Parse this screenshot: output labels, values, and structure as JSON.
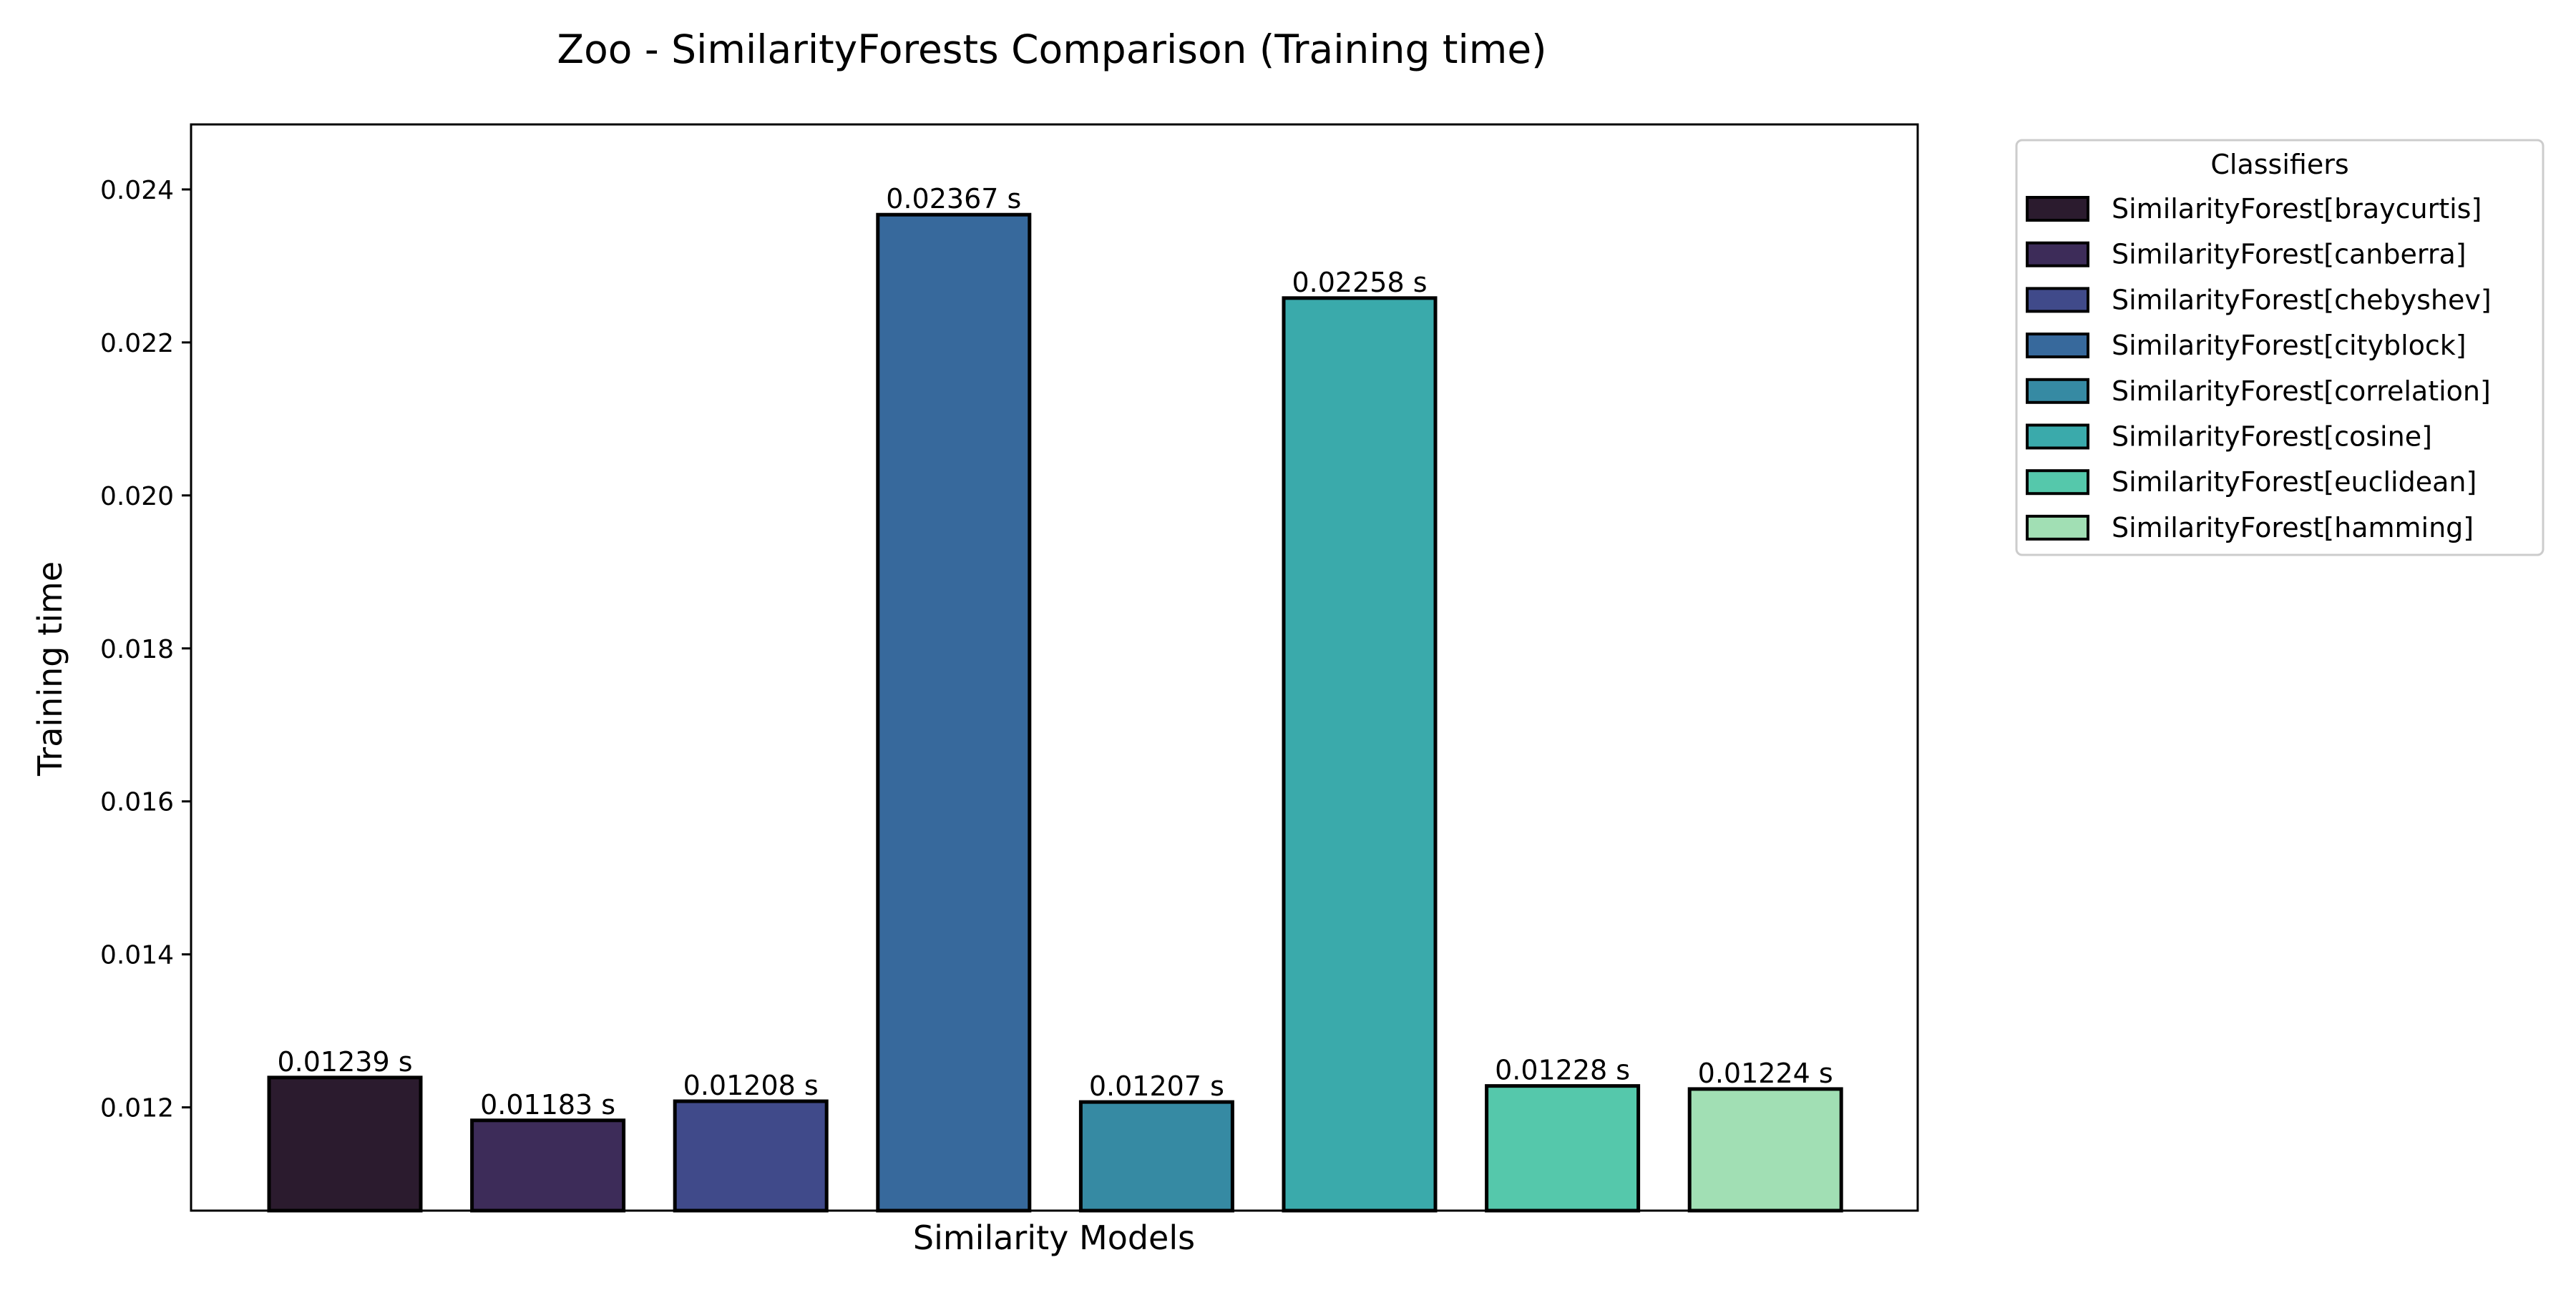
{
  "chart_data": {
    "type": "bar",
    "title": "Zoo - SimilarityForests Comparison (Training time)",
    "xlabel": "Similarity Models",
    "ylabel": "Training time",
    "ylim": [
      0.01065,
      0.02485
    ],
    "yticks": [
      "0.012",
      "0.014",
      "0.016",
      "0.018",
      "0.020",
      "0.022",
      "0.024"
    ],
    "categories": [
      "SimilarityForest[braycurtis]",
      "SimilarityForest[canberra]",
      "SimilarityForest[chebyshev]",
      "SimilarityForest[cityblock]",
      "SimilarityForest[correlation]",
      "SimilarityForest[cosine]",
      "SimilarityForest[euclidean]",
      "SimilarityForest[hamming]"
    ],
    "values": [
      0.01239,
      0.01183,
      0.01208,
      0.02367,
      0.01207,
      0.02258,
      0.01228,
      0.01224
    ],
    "bar_labels": [
      "0.01239 s",
      "0.01183 s",
      "0.01208 s",
      "0.02367 s",
      "0.01207 s",
      "0.02258 s",
      "0.01228 s",
      "0.01224 s"
    ],
    "colors": [
      "#2b1b2e",
      "#3d2c59",
      "#404a8a",
      "#37699c",
      "#368aa3",
      "#3aaaab",
      "#55c8ab",
      "#a1dfb4"
    ],
    "legend": {
      "title": "Classifiers",
      "position": "outside-right-top"
    },
    "grid": false
  }
}
